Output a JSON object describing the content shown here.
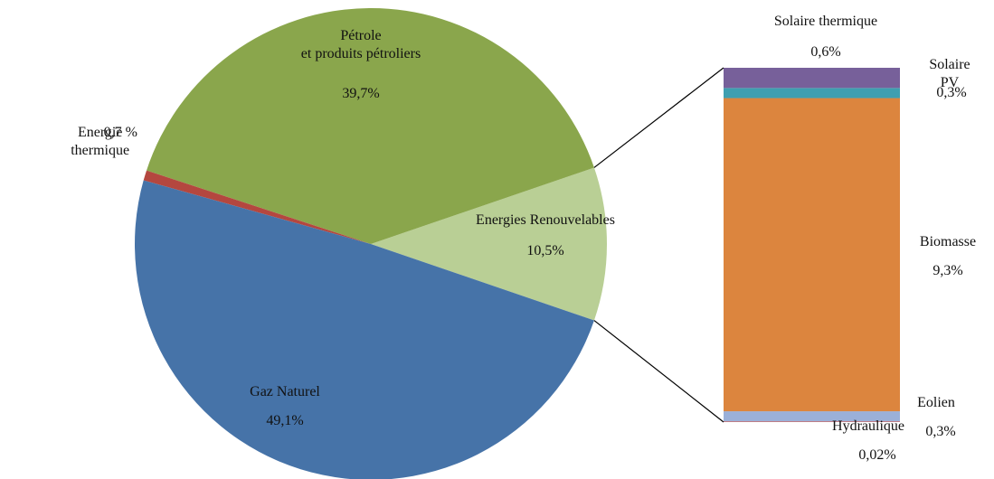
{
  "chart_data": {
    "type": "pie",
    "pie": {
      "categories": [
        "Energies Renouvelables",
        "Pétrole\net produits pétroliers",
        "Energie\nthermique",
        "Gaz Naturel"
      ],
      "values": [
        10.5,
        39.7,
        0.7,
        49.1
      ],
      "value_labels": [
        "10,5%",
        "39,7%",
        "0,7 %",
        "49,1%"
      ],
      "colors": [
        "#b9cf95",
        "#8aa64c",
        "#b4473f",
        "#4673a8"
      ]
    },
    "bar": {
      "categories": [
        "Hydraulique",
        "Eolien",
        "Biomasse",
        "Solaire PV",
        "Solaire thermique"
      ],
      "values": [
        0.02,
        0.3,
        9.3,
        0.3,
        0.6
      ],
      "value_labels": [
        "0,02%",
        "0,3%",
        "9,3%",
        "0,3%",
        "0,6%"
      ],
      "colors": [
        "#c0504d",
        "#9bb0d8",
        "#dc853e",
        "#3f9fb0",
        "#77609a"
      ]
    }
  }
}
